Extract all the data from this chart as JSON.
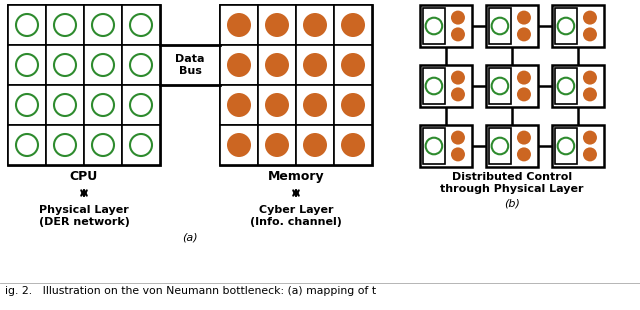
{
  "green_color": "#2e8b2e",
  "orange_color": "#cc6622",
  "black_color": "#000000",
  "bg_color": "#ffffff",
  "cpu_label": "CPU",
  "memory_label": "Memory",
  "sub_left1": "Physical Layer",
  "sub_left2": "(DER network)",
  "sub_right1": "Cyber Layer",
  "sub_right2": "(Info. channel)",
  "sub_b1": "Distributed Control",
  "sub_b2": "through Physical Layer",
  "label_a": "(a)",
  "label_b": "(b)",
  "data_bus_label": "Data\nBus",
  "caption": "ig. 2.   Illustration on the von Neumann bottleneck: (a) mapping of t",
  "fig_w": 6.4,
  "fig_h": 3.1,
  "dpi": 100
}
